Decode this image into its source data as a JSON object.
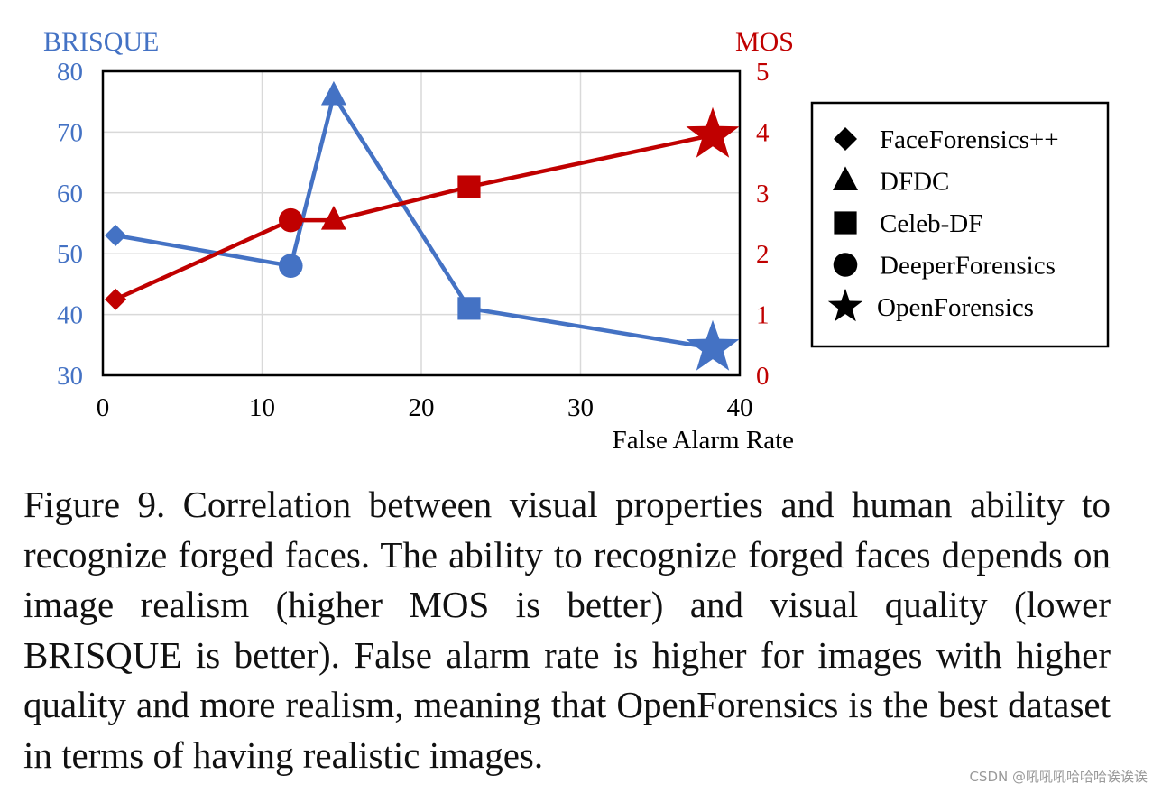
{
  "chart_data": {
    "type": "line",
    "x_axis": {
      "label": "False Alarm Rate",
      "range": [
        0,
        40
      ],
      "ticks": [
        0,
        10,
        20,
        30,
        40
      ],
      "grid": true
    },
    "y_axis_left": {
      "label": "BRISQUE",
      "range": [
        30,
        80
      ],
      "ticks": [
        30,
        40,
        50,
        60,
        70,
        80
      ],
      "color": "#4472c4",
      "grid": true
    },
    "y_axis_right": {
      "label": "MOS",
      "range": [
        0,
        5
      ],
      "ticks": [
        0,
        1,
        2,
        3,
        4,
        5
      ],
      "color": "#c00000"
    },
    "series": [
      {
        "name": "BRISQUE",
        "axis": "left",
        "color": "#4472c4",
        "points": [
          {
            "dataset": "FaceForensics++",
            "x": 0.8,
            "y": 53
          },
          {
            "dataset": "DeeperForensics",
            "x": 11.8,
            "y": 48
          },
          {
            "dataset": "DFDC",
            "x": 14.5,
            "y": 76
          },
          {
            "dataset": "Celeb-DF",
            "x": 23,
            "y": 41
          },
          {
            "dataset": "OpenForensics",
            "x": 38.3,
            "y": 34.5
          }
        ]
      },
      {
        "name": "MOS",
        "axis": "right",
        "color": "#c00000",
        "points": [
          {
            "dataset": "FaceForensics++",
            "x": 0.8,
            "y": 1.25
          },
          {
            "dataset": "DeeperForensics",
            "x": 11.8,
            "y": 2.55
          },
          {
            "dataset": "DFDC",
            "x": 14.5,
            "y": 2.55
          },
          {
            "dataset": "Celeb-DF",
            "x": 23,
            "y": 3.1
          },
          {
            "dataset": "OpenForensics",
            "x": 38.3,
            "y": 3.95
          }
        ]
      }
    ],
    "legend": {
      "placement": "right",
      "entries": [
        {
          "label": "FaceForensics++",
          "marker": "diamond"
        },
        {
          "label": "DFDC",
          "marker": "triangle"
        },
        {
          "label": "Celeb-DF",
          "marker": "square"
        },
        {
          "label": "DeeperForensics",
          "marker": "circle"
        },
        {
          "label": "OpenForensics",
          "marker": "star"
        }
      ]
    }
  },
  "caption": "Figure 9. Correlation between visual properties and human ability to recognize forged faces. The ability to recognize forged faces depends on image realism (higher MOS is better) and visual quality (lower BRISQUE is better). False alarm rate is higher for images with higher quality and more realism, meaning that OpenForensics is the best dataset in terms of having realistic images.",
  "watermark": "CSDN @吼吼吼哈哈哈诶诶诶"
}
